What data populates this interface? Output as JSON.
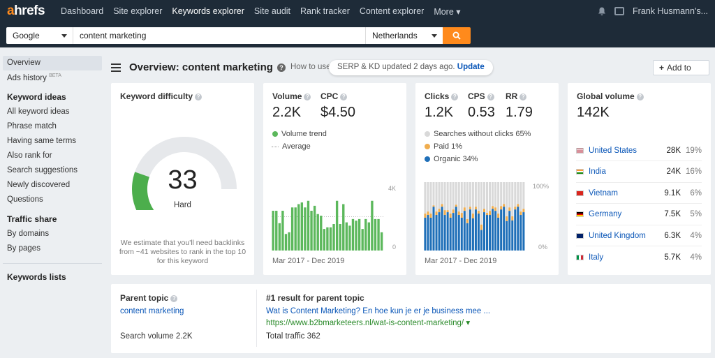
{
  "nav": {
    "logo_a": "a",
    "logo_rest": "hrefs",
    "links": [
      "Dashboard",
      "Site explorer",
      "Keywords explorer",
      "Site audit",
      "Rank tracker",
      "Content explorer",
      "More ▾"
    ],
    "user": "Frank Husmann's..."
  },
  "search": {
    "engine": "Google",
    "query": "content marketing",
    "country": "Netherlands"
  },
  "sidebar": {
    "overview": "Overview",
    "ads_history": "Ads history",
    "beta": "BETA",
    "keyword_ideas_head": "Keyword ideas",
    "keyword_ideas": [
      "All keyword ideas",
      "Phrase match",
      "Having same terms",
      "Also rank for",
      "Search suggestions",
      "Newly discovered",
      "Questions"
    ],
    "traffic_share_head": "Traffic share",
    "traffic_share": [
      "By domains",
      "By pages"
    ],
    "keywords_lists": "Keywords lists"
  },
  "header": {
    "title": "Overview: content marketing",
    "howto": "How to use",
    "updated": "SERP & KD updated 2 days ago.",
    "update_link": "Update",
    "add_to": "Add to"
  },
  "kd": {
    "label": "Keyword difficulty",
    "value": "33",
    "value_num": 33,
    "rating": "Hard",
    "note": "We estimate that you'll need backlinks from ~41 websites to rank in the top 10 for this keyword"
  },
  "volume": {
    "label": "Volume",
    "value": "2.2K",
    "cpc_label": "CPC",
    "cpc_value": "$4.50",
    "legend_trend": "Volume trend",
    "legend_avg": "Average",
    "axis_top": "4K",
    "axis_bottom": "0",
    "period": "Mar 2017 - Dec 2019"
  },
  "clicks": {
    "label": "Clicks",
    "value": "1.2K",
    "cps_label": "CPS",
    "cps_value": "0.53",
    "rr_label": "RR",
    "rr_value": "1.79",
    "legend_no_clicks": "Searches without clicks 65%",
    "legend_paid": "Paid 1%",
    "legend_organic": "Organic 34%",
    "axis_top": "100%",
    "axis_bottom": "0%",
    "period": "Mar 2017 - Dec 2019"
  },
  "global": {
    "label": "Global volume",
    "value": "142K",
    "countries": [
      {
        "name": "United States",
        "value": "28K",
        "pct": "19%"
      },
      {
        "name": "India",
        "value": "24K",
        "pct": "16%"
      },
      {
        "name": "Vietnam",
        "value": "9.1K",
        "pct": "6%"
      },
      {
        "name": "Germany",
        "value": "7.5K",
        "pct": "5%"
      },
      {
        "name": "United Kingdom",
        "value": "6.3K",
        "pct": "4%"
      },
      {
        "name": "Italy",
        "value": "5.7K",
        "pct": "4%"
      }
    ]
  },
  "parent": {
    "label": "Parent topic",
    "topic": "content marketing",
    "search_volume": "Search volume 2.2K",
    "result_label": "#1 result for parent topic",
    "result_title": "Wat is Content Marketing? En hoe kun je er je business mee ...",
    "result_url": "https://www.b2bmarketeers.nl/wat-is-content-marketing/ ▾",
    "total_traffic": "Total traffic 362"
  },
  "colors": {
    "accent": "#ff8a1c",
    "green": "#5cb85c",
    "organic": "#1f6fb8",
    "paid": "#f0ad4e",
    "no_clicks": "#d9d9d9",
    "link": "#0b57b8"
  },
  "chart_data": [
    {
      "type": "bar",
      "title": "Volume trend",
      "x_range": [
        "Mar 2017",
        "Dec 2019"
      ],
      "ylim": [
        0,
        4000
      ],
      "series": [
        {
          "name": "Volume trend",
          "values": [
            2400,
            2400,
            1650,
            2400,
            1000,
            1100,
            2600,
            2600,
            2800,
            2900,
            2600,
            3000,
            2400,
            2700,
            2200,
            2100,
            1300,
            1400,
            1400,
            1600,
            3000,
            1600,
            2800,
            1700,
            1500,
            1900,
            1800,
            1900,
            1300,
            1900,
            1700,
            3000,
            1900,
            1900,
            1100
          ]
        }
      ]
    },
    {
      "type": "bar",
      "title": "Clicks",
      "x_range": [
        "Mar 2017",
        "Dec 2019"
      ],
      "ylim": [
        0,
        100
      ],
      "series": [
        {
          "name": "Organic 34%",
          "values": [
            48,
            52,
            48,
            64,
            52,
            56,
            64,
            52,
            56,
            48,
            55,
            64,
            52,
            48,
            58,
            40,
            60,
            47,
            60,
            54,
            30,
            56,
            52,
            52,
            61,
            58,
            48,
            60,
            64,
            43,
            58,
            44,
            60,
            64,
            52,
            56
          ]
        },
        {
          "name": "Paid 1%",
          "values": [
            6,
            5,
            6,
            2,
            5,
            5,
            4,
            7,
            3,
            6,
            5,
            3,
            5,
            7,
            5,
            6,
            4,
            7,
            4,
            4,
            8,
            5,
            3,
            6,
            4,
            5,
            6,
            5,
            4,
            7,
            5,
            6,
            4,
            4,
            5,
            5
          ]
        }
      ]
    }
  ]
}
